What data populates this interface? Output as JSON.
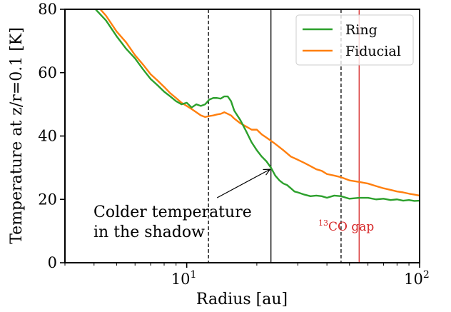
{
  "chart_data": {
    "type": "line",
    "xlabel": "Radius [au]",
    "ylabel": "Temperature at z/r=0.1 [K]",
    "xscale": "log",
    "xlim": [
      3,
      100
    ],
    "ylim": [
      0,
      80
    ],
    "yticks": [
      0,
      20,
      40,
      60,
      80
    ],
    "ytick_labels": [
      "0",
      "20",
      "40",
      "60",
      "80"
    ],
    "xticks": [
      10,
      100
    ],
    "xtick_labels": [
      {
        "base": "10",
        "exp": "1"
      },
      {
        "base": "10",
        "exp": "2"
      }
    ],
    "legend_position": "top-right",
    "series": [
      {
        "name": "Ring",
        "color": "#2ca02c",
        "x": [
          4.0,
          4.5,
          5.0,
          5.5,
          6.0,
          6.5,
          7.0,
          7.5,
          8.0,
          8.5,
          9.0,
          9.5,
          10.0,
          10.5,
          11.0,
          11.5,
          12.0,
          12.5,
          13.0,
          13.5,
          14.0,
          14.5,
          15.0,
          15.5,
          16.0,
          17.0,
          18.0,
          19.0,
          20.0,
          21.0,
          22.0,
          23.0,
          24.0,
          25.0,
          26.0,
          27.0,
          28.0,
          29.0,
          30.0,
          32.0,
          34.0,
          36.0,
          38.0,
          40.0,
          43.0,
          46.0,
          50.0,
          55.0,
          60.0,
          65.0,
          70.0,
          75.0,
          80.0,
          85.0,
          90.0,
          95.0,
          100.0
        ],
        "y": [
          80.5,
          76.5,
          71.5,
          67.5,
          64.5,
          61.0,
          58.0,
          56.0,
          54.0,
          52.5,
          51.0,
          50.0,
          50.5,
          49.0,
          50.0,
          49.5,
          50.0,
          51.5,
          52.0,
          52.0,
          51.8,
          52.5,
          52.5,
          51.0,
          48.0,
          45.0,
          41.5,
          38.0,
          35.5,
          33.5,
          32.0,
          30.0,
          27.5,
          26.0,
          25.0,
          24.5,
          23.5,
          22.5,
          22.2,
          21.5,
          21.0,
          21.2,
          21.0,
          20.5,
          21.2,
          21.0,
          20.2,
          20.5,
          20.5,
          20.0,
          20.2,
          19.8,
          20.0,
          19.6,
          19.8,
          19.5,
          19.6
        ]
      },
      {
        "name": "Fiducial",
        "color": "#ff7f0e",
        "x": [
          4.2,
          4.5,
          5.0,
          5.5,
          6.0,
          6.5,
          7.0,
          7.5,
          8.0,
          8.5,
          9.0,
          9.5,
          10.0,
          10.5,
          11.0,
          11.5,
          12.0,
          12.5,
          13.0,
          13.5,
          14.0,
          14.5,
          15.0,
          15.5,
          16.0,
          17.0,
          18.0,
          19.0,
          20.0,
          21.0,
          22.0,
          23.0,
          24.0,
          25.0,
          26.0,
          27.0,
          28.0,
          30.0,
          32.0,
          34.0,
          36.0,
          38.0,
          40.0,
          43.0,
          46.0,
          50.0,
          55.0,
          60.0,
          65.0,
          70.0,
          75.0,
          80.0,
          85.0,
          90.0,
          95.0,
          100.0
        ],
        "y": [
          80.5,
          78.0,
          73.0,
          69.5,
          65.5,
          62.5,
          59.5,
          57.5,
          55.5,
          53.5,
          52.0,
          50.5,
          49.5,
          48.5,
          47.5,
          46.5,
          46.0,
          46.3,
          46.5,
          46.8,
          47.0,
          47.5,
          47.0,
          46.5,
          45.5,
          44.0,
          43.0,
          42.0,
          42.0,
          40.5,
          39.5,
          38.5,
          37.5,
          36.5,
          35.5,
          34.5,
          33.5,
          32.5,
          31.5,
          30.5,
          29.5,
          29.0,
          28.0,
          27.5,
          27.0,
          26.0,
          25.5,
          25.0,
          24.2,
          23.5,
          23.0,
          22.5,
          22.2,
          21.8,
          21.5,
          21.2
        ]
      }
    ],
    "vlines": [
      {
        "x": 12.4,
        "style": "dashed",
        "color": "#000000"
      },
      {
        "x": 23.0,
        "style": "solid",
        "color": "#000000"
      },
      {
        "x": 46.0,
        "style": "dashed",
        "color": "#000000"
      },
      {
        "x": 55.0,
        "style": "solid",
        "color": "#d62728"
      }
    ],
    "annotations": {
      "shadow": {
        "line1": "Colder temperature",
        "line2": "in the shadow",
        "arrow_from": [
          13.5,
          20.5
        ],
        "arrow_to": [
          22.8,
          29.5
        ]
      },
      "gap": {
        "sup": "13",
        "text": "CO gap",
        "color": "#d62728"
      }
    }
  }
}
